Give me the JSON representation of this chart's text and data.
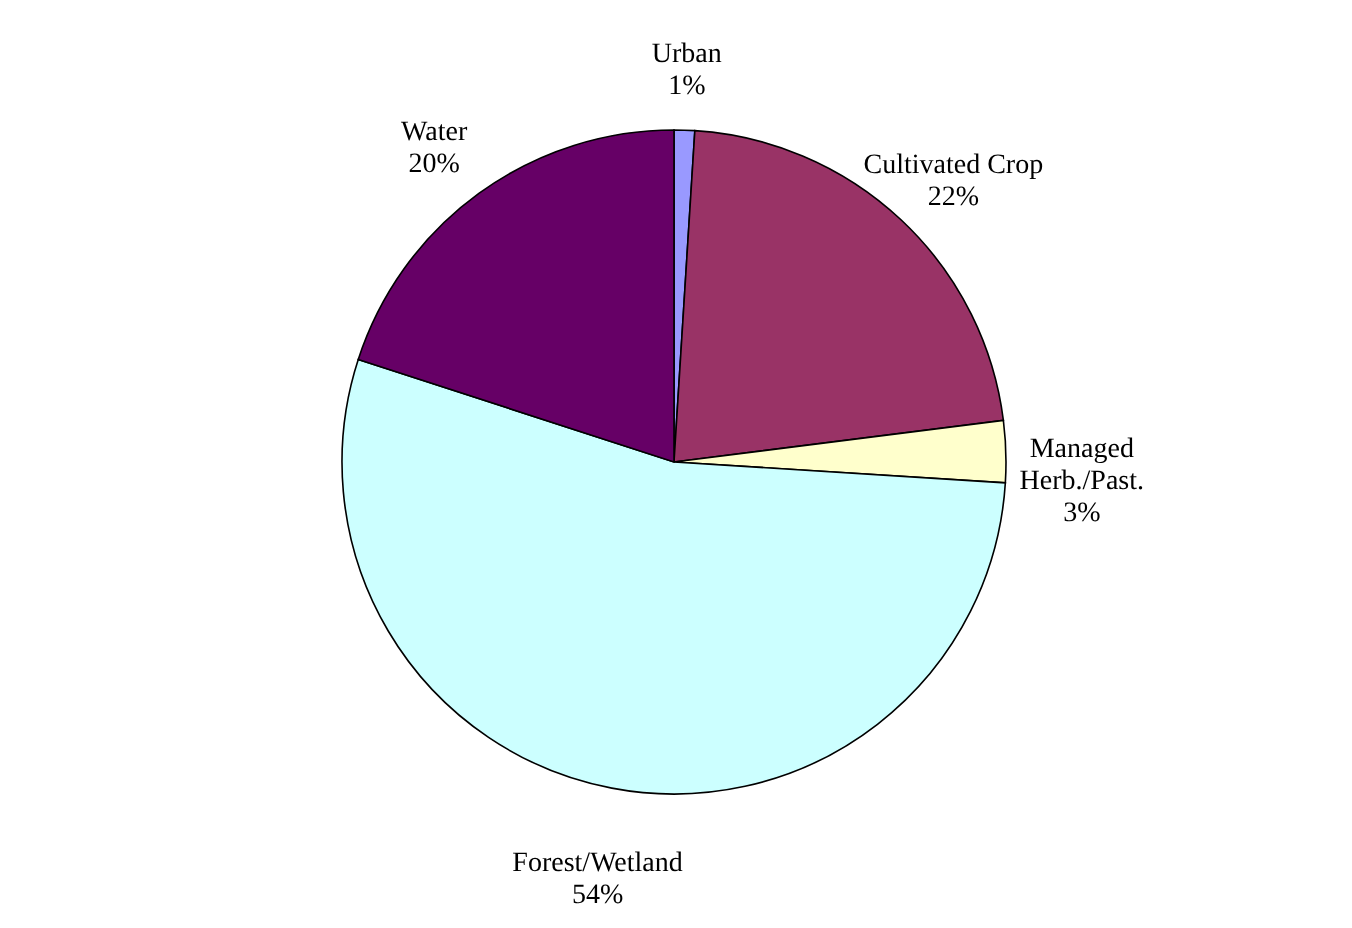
{
  "chart_data": {
    "type": "pie",
    "categories": [
      "Urban",
      "Cultivated Crop",
      "Managed Herb./Past.",
      "Forest/Wetland",
      "Water"
    ],
    "values": [
      1,
      22,
      3,
      54,
      20
    ],
    "value_labels": [
      "1%",
      "22%",
      "3%",
      "54%",
      "20%"
    ],
    "colors": [
      "#9999ff",
      "#993366",
      "#ffffcc",
      "#ccffff",
      "#660066"
    ],
    "legend": false
  }
}
